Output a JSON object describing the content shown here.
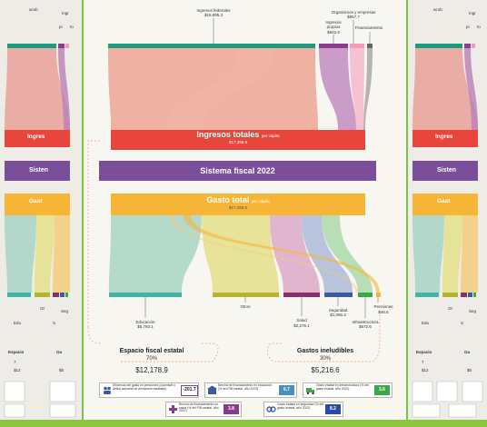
{
  "top_sources": {
    "federal": {
      "label": "Ingresos federales",
      "value": "$15,895.3"
    },
    "empresas": {
      "label": "Organismos y empresas",
      "value": "$557.7"
    },
    "propios": {
      "label": "Ingresos propios",
      "value": "$942.6"
    },
    "financiamiento": {
      "label": "Financiamiento",
      "value": ""
    }
  },
  "ingresos": {
    "label": "Ingresos totales",
    "per_capita": "per cápita",
    "value": "$17,395.5"
  },
  "sistema": {
    "label": "Sistema fiscal 2022"
  },
  "gasto": {
    "label": "Gasto total",
    "per_capita": "per cápita",
    "value": "$17,395.5"
  },
  "destinations": {
    "educacion": {
      "label": "Educación",
      "value": "$5,793.1"
    },
    "otros": {
      "label": "Otros",
      "value": ""
    },
    "salud": {
      "label": "Salud",
      "value": "$2,275.1"
    },
    "seguridad": {
      "label": "Seguridad",
      "value": "$1,066.3"
    },
    "infraestructura": {
      "label": "Infraestructura",
      "value": "$672.6"
    },
    "pensiones": {
      "label": "Pensiones",
      "value": "$46.6"
    }
  },
  "summary": {
    "estatal": {
      "label": "Espacio fiscal estatal",
      "pct": "70%",
      "value": "$12,178.9"
    },
    "ineludibles": {
      "label": "Gastos ineludibles",
      "pct": "30%",
      "value": "$5,216.6"
    }
  },
  "legend": [
    {
      "text": "Eficiencia del gasto en pensiones (superávit o déficit actuarial de pensiones estatales)",
      "value": "-201.7",
      "color": "#ffffff",
      "value_color": "#222222",
      "icon": "people-icon"
    },
    {
      "text": "Brecha de financiamiento en educación (% del PIB estatal, año 2023)",
      "value": "6.7",
      "color": "#4a90b8",
      "value_color": "#ffffff",
      "icon": "school-icon"
    },
    {
      "text": "Gasto estatal en infraestructura (% del gasto estatal, año 2022)",
      "value": "3.6",
      "color": "#3aa84a",
      "value_color": "#ffffff",
      "icon": "truck-icon"
    },
    {
      "text": "Brecha de financiamiento en salud (% del PIB estatal, año 2022)",
      "value": "3.8",
      "color": "#8a3a8a",
      "value_color": "#ffffff",
      "icon": "health-icon"
    },
    {
      "text": "Gasto estatal en seguridad (% del gasto estatal, año 2022)",
      "value": "8.2",
      "color": "#2a4aa8",
      "value_color": "#ffffff",
      "icon": "police-icon"
    }
  ],
  "colors": {
    "federal": "#1f9a7e",
    "propios": "#8c3e8c",
    "empresas": "#f29bbd",
    "financiamiento": "#666666",
    "ingresos": "#e8453c",
    "sistema": "#7a4e9a",
    "gasto": "#f7b538",
    "educacion": "#3fb4a8",
    "otros": "#b5b52e",
    "salud": "#8c2e6e",
    "seguridad": "#3a5aa8",
    "infraestructura": "#3aa84a",
    "pensiones": "#f7b538"
  },
  "side_left": {
    "top": [
      "acob",
      "Ingr",
      "pi",
      "to",
      "Ingre",
      "sa"
    ],
    "ingresos": "Ingres",
    "sistema": "Sisten",
    "gasto": "Gast",
    "bottom": [
      "Edu",
      "Ot",
      "S",
      "Seg",
      "Inf",
      "Pen"
    ],
    "summary": [
      "Espacio",
      "7",
      "$12",
      "Ga",
      "$5"
    ]
  },
  "side_right": {
    "top": [
      "acob",
      "Ingr",
      "pi",
      "to",
      "Ingre",
      "sa"
    ],
    "ingresos": "Ingres",
    "sistema": "Sisten",
    "gasto": "Gast",
    "bottom": [
      "Edu",
      "Ot",
      "S",
      "Seg",
      "Inf",
      "Pen"
    ],
    "summary": [
      "Espacio",
      "7",
      "$12",
      "Ga",
      "$5"
    ]
  }
}
